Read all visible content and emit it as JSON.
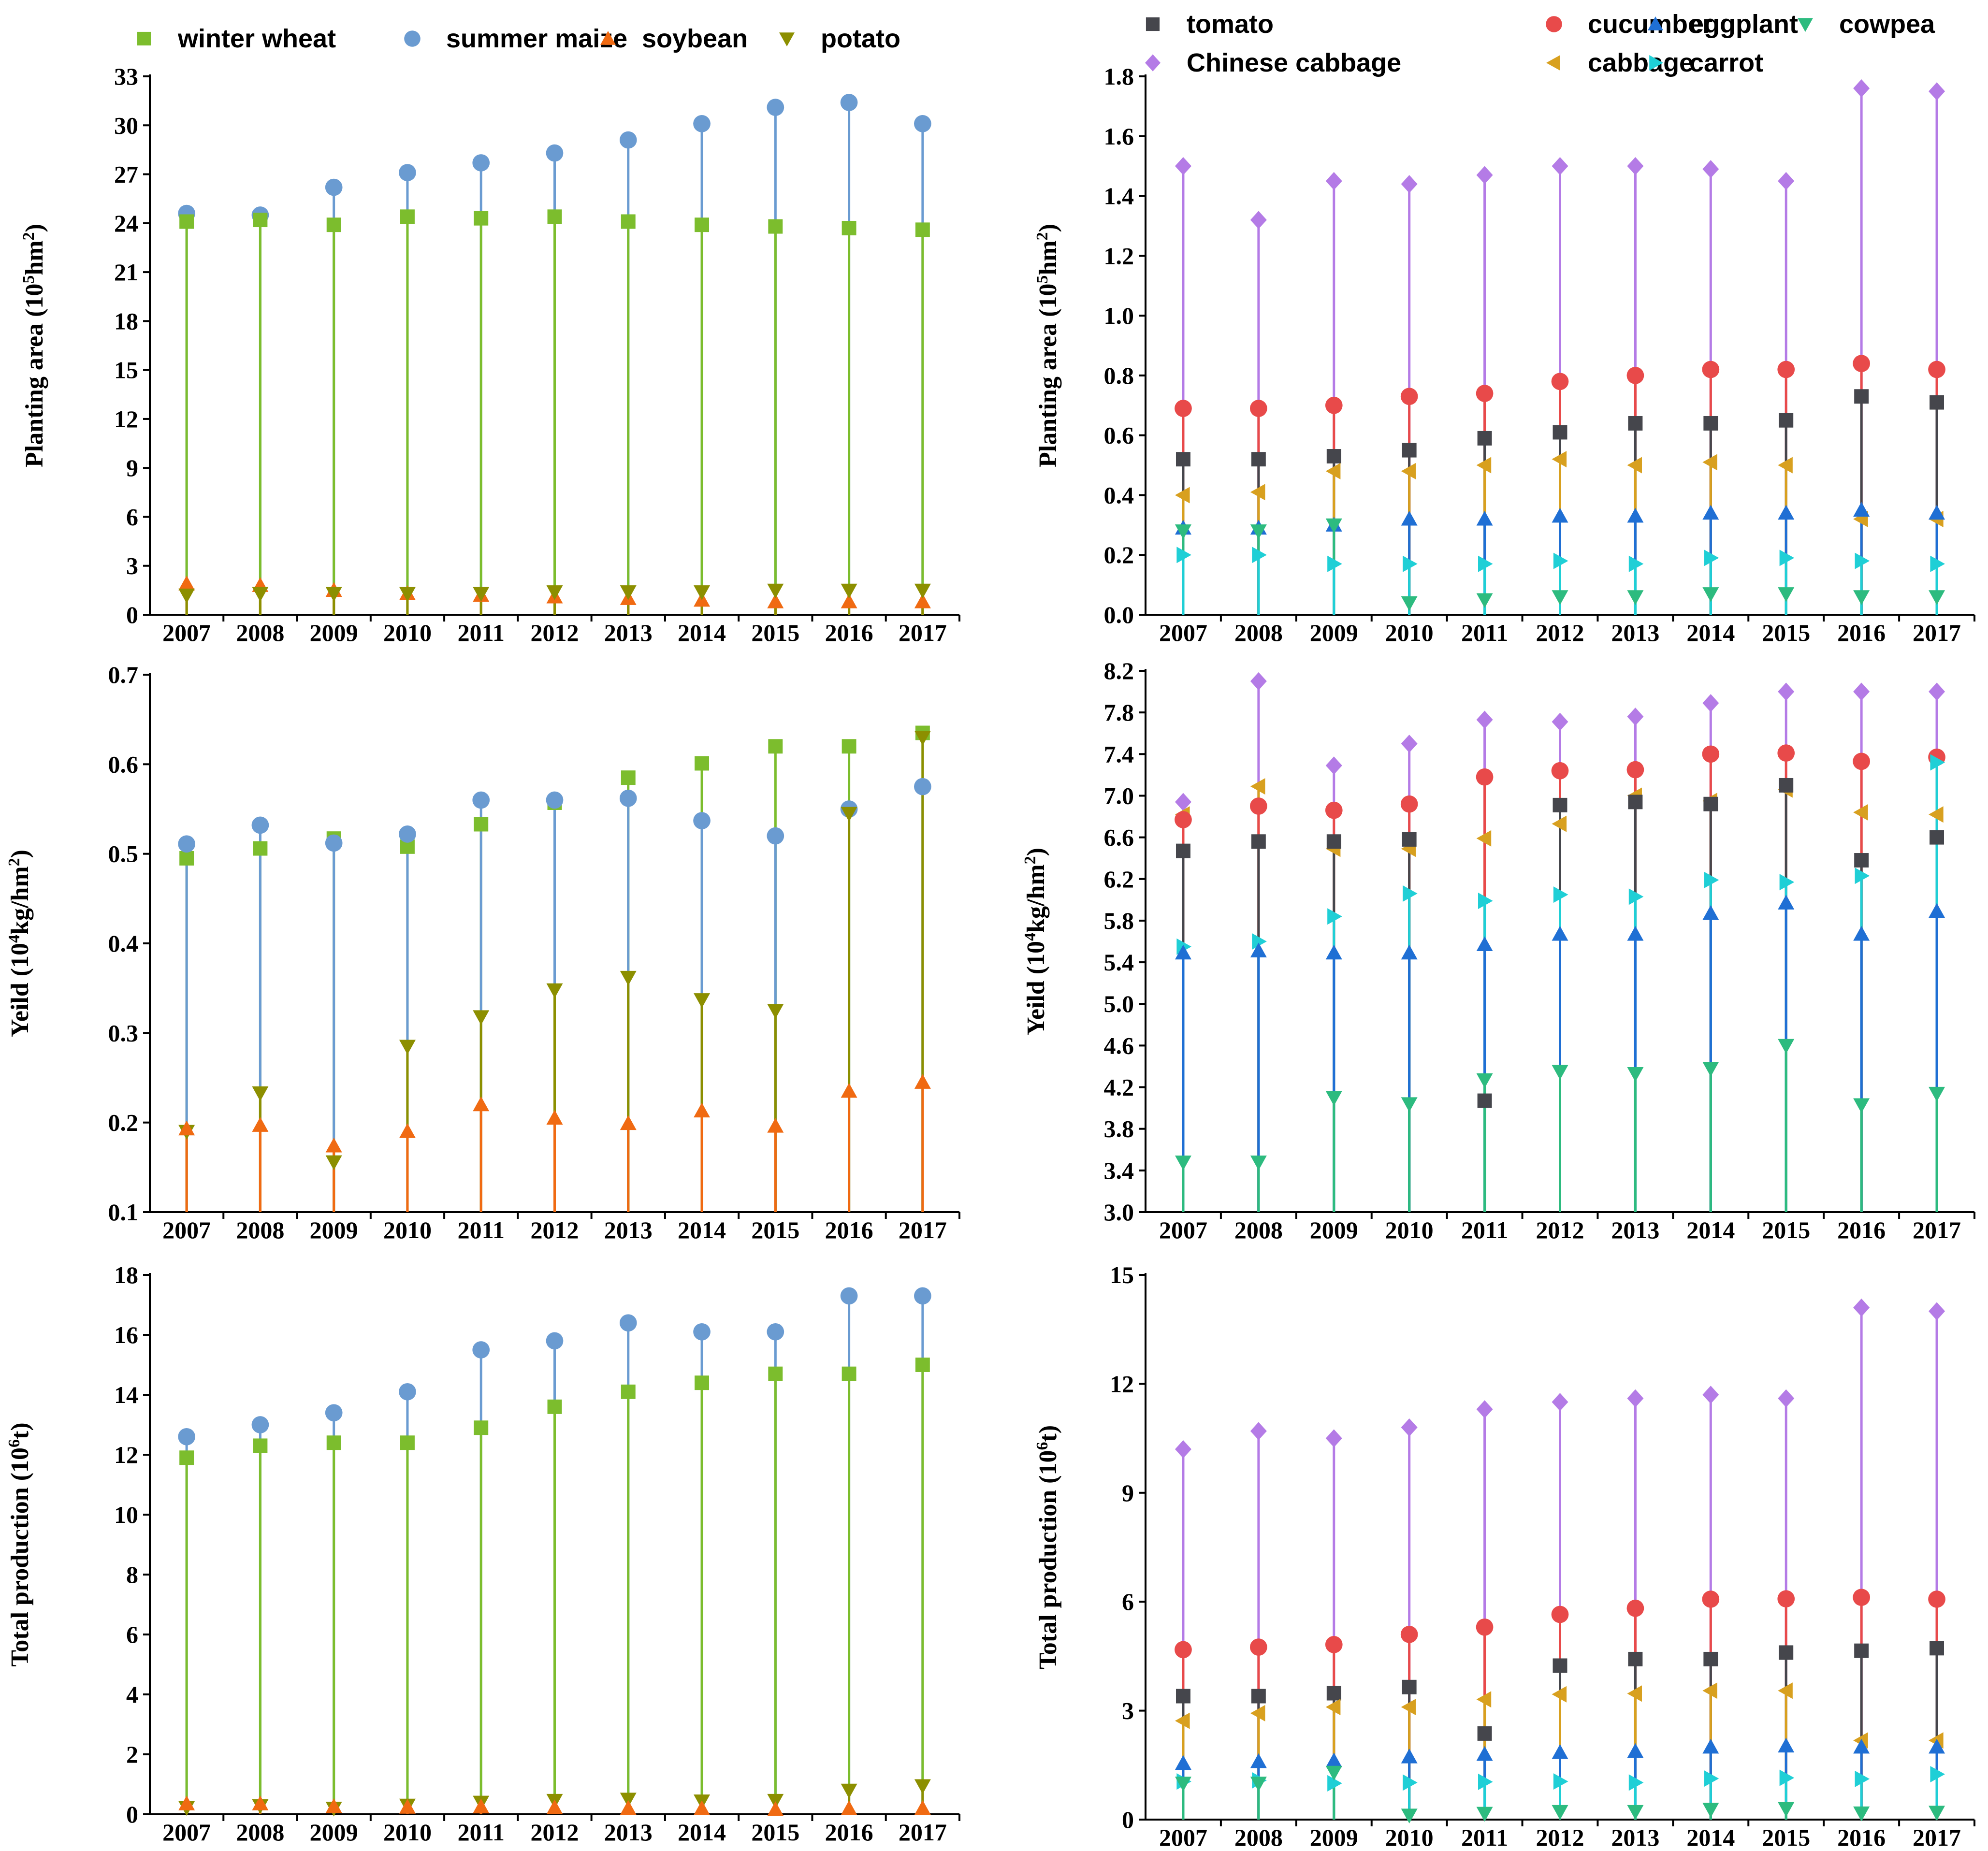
{
  "colors": {
    "winter_wheat": "#7cbd2d",
    "summer_maize": "#6a9bd1",
    "soybean": "#f06a12",
    "potato": "#8c8f00",
    "tomato": "#45464c",
    "cucumber": "#e84a4a",
    "eggplant": "#1f6fd4",
    "cowpea": "#2dbb7f",
    "chinese_cabbage": "#b47be6",
    "cabbage": "#d8a01f",
    "carrot": "#1fcfd6"
  },
  "chart_data": [
    {
      "id": "grain-area",
      "type": "scatter",
      "x": [
        "2007",
        "2008",
        "2009",
        "2010",
        "2011",
        "2012",
        "2013",
        "2014",
        "2015",
        "2016",
        "2017"
      ],
      "ylabel": "Planting area (10^5hm^2)",
      "ylim": [
        0,
        33
      ],
      "yticks": [
        "0",
        "3",
        "6",
        "9",
        "12",
        "15",
        "18",
        "21",
        "24",
        "27",
        "30",
        "33"
      ],
      "legend": [
        {
          "key": "winter_wheat",
          "label": "winter wheat",
          "marker": "square"
        },
        {
          "key": "summer_maize",
          "label": "summer maize",
          "marker": "circle"
        },
        {
          "key": "soybean",
          "label": "soybean",
          "marker": "triangle-up"
        },
        {
          "key": "potato",
          "label": "potato",
          "marker": "triangle-down"
        }
      ],
      "series": [
        {
          "key": "summer_maize",
          "name": "summer maize",
          "marker": "circle",
          "values": [
            24.6,
            24.5,
            26.2,
            27.1,
            27.7,
            28.3,
            29.1,
            30.1,
            31.1,
            31.4,
            30.1
          ]
        },
        {
          "key": "winter_wheat",
          "name": "winter wheat",
          "marker": "square",
          "values": [
            24.1,
            24.2,
            23.9,
            24.4,
            24.3,
            24.4,
            24.1,
            23.9,
            23.8,
            23.7,
            23.6
          ]
        },
        {
          "key": "soybean",
          "name": "soybean",
          "marker": "triangle-up",
          "values": [
            1.9,
            1.8,
            1.5,
            1.3,
            1.2,
            1.1,
            1.0,
            0.9,
            0.8,
            0.8,
            0.8
          ]
        },
        {
          "key": "potato",
          "name": "potato",
          "marker": "triangle-down",
          "values": [
            1.2,
            1.3,
            1.3,
            1.3,
            1.3,
            1.4,
            1.4,
            1.4,
            1.5,
            1.5,
            1.5
          ]
        }
      ]
    },
    {
      "id": "veg-area",
      "type": "scatter",
      "x": [
        "2007",
        "2008",
        "2009",
        "2010",
        "2011",
        "2012",
        "2013",
        "2014",
        "2015",
        "2016",
        "2017"
      ],
      "ylabel": "Planting area (10^5hm^2)",
      "ylim": [
        0,
        1.8
      ],
      "yticks": [
        "0.0",
        "0.2",
        "0.4",
        "0.6",
        "0.8",
        "1.0",
        "1.2",
        "1.4",
        "1.6",
        "1.8"
      ],
      "legend": [
        {
          "key": "tomato",
          "label": "tomato",
          "marker": "square"
        },
        {
          "key": "cucumber",
          "label": "cucumber",
          "marker": "circle"
        },
        {
          "key": "eggplant",
          "label": "eggplant",
          "marker": "triangle-up"
        },
        {
          "key": "cowpea",
          "label": "cowpea",
          "marker": "triangle-down"
        },
        {
          "key": "chinese_cabbage",
          "label": "Chinese cabbage",
          "marker": "diamond"
        },
        {
          "key": "cabbage",
          "label": "cabbage",
          "marker": "triangle-left"
        },
        {
          "key": "carrot",
          "label": "carrot",
          "marker": "triangle-right"
        }
      ],
      "series": [
        {
          "key": "chinese_cabbage",
          "name": "Chinese cabbage",
          "marker": "diamond",
          "values": [
            1.5,
            1.32,
            1.45,
            1.44,
            1.47,
            1.5,
            1.5,
            1.49,
            1.45,
            1.76,
            1.75
          ]
        },
        {
          "key": "cucumber",
          "name": "cucumber",
          "marker": "circle",
          "values": [
            0.69,
            0.69,
            0.7,
            0.73,
            0.74,
            0.78,
            0.8,
            0.82,
            0.82,
            0.84,
            0.82
          ]
        },
        {
          "key": "tomato",
          "name": "tomato",
          "marker": "square",
          "values": [
            0.52,
            0.52,
            0.53,
            0.55,
            0.59,
            0.61,
            0.64,
            0.64,
            0.65,
            0.73,
            0.71
          ]
        },
        {
          "key": "cabbage",
          "name": "cabbage",
          "marker": "triangle-left",
          "values": [
            0.4,
            0.41,
            0.48,
            0.48,
            0.5,
            0.52,
            0.5,
            0.51,
            0.5,
            0.32,
            0.32
          ]
        },
        {
          "key": "eggplant",
          "name": "eggplant",
          "marker": "triangle-up",
          "values": [
            0.29,
            0.29,
            0.3,
            0.32,
            0.32,
            0.33,
            0.33,
            0.34,
            0.34,
            0.35,
            0.34
          ]
        },
        {
          "key": "cowpea",
          "name": "cowpea",
          "marker": "triangle-down",
          "values": [
            0.28,
            0.28,
            0.3,
            0.04,
            0.05,
            0.06,
            0.06,
            0.07,
            0.07,
            0.06,
            0.06
          ]
        },
        {
          "key": "carrot",
          "name": "carrot",
          "marker": "triangle-right",
          "values": [
            0.2,
            0.2,
            0.17,
            0.17,
            0.17,
            0.18,
            0.17,
            0.19,
            0.19,
            0.18,
            0.17
          ]
        }
      ]
    },
    {
      "id": "grain-yield",
      "type": "scatter",
      "x": [
        "2007",
        "2008",
        "2009",
        "2010",
        "2011",
        "2012",
        "2013",
        "2014",
        "2015",
        "2016",
        "2017"
      ],
      "ylabel": "Yeild (10^4kg/hm^2)",
      "ylim": [
        0.1,
        0.7
      ],
      "yticks": [
        "0.1",
        "0.2",
        "0.3",
        "0.4",
        "0.5",
        "0.6",
        "0.7"
      ],
      "series": [
        {
          "key": "winter_wheat",
          "name": "winter wheat",
          "marker": "square",
          "values": [
            0.495,
            0.506,
            0.517,
            0.508,
            0.533,
            0.557,
            0.585,
            0.601,
            0.62,
            0.62,
            0.635
          ]
        },
        {
          "key": "summer_maize",
          "name": "summer maize",
          "marker": "circle",
          "values": [
            0.511,
            0.532,
            0.512,
            0.522,
            0.56,
            0.56,
            0.562,
            0.537,
            0.52,
            0.55,
            0.575
          ]
        },
        {
          "key": "potato",
          "name": "potato",
          "marker": "triangle-down",
          "values": [
            0.19,
            0.233,
            0.156,
            0.285,
            0.318,
            0.348,
            0.362,
            0.337,
            0.325,
            0.545,
            0.63
          ]
        },
        {
          "key": "soybean",
          "name": "soybean",
          "marker": "triangle-up",
          "values": [
            0.193,
            0.197,
            0.174,
            0.19,
            0.22,
            0.205,
            0.199,
            0.213,
            0.196,
            0.235,
            0.245
          ]
        }
      ]
    },
    {
      "id": "veg-yield",
      "type": "scatter",
      "x": [
        "2007",
        "2008",
        "2009",
        "2010",
        "2011",
        "2012",
        "2013",
        "2014",
        "2015",
        "2016",
        "2017"
      ],
      "ylabel": "Yeild (10^4kg/hm^2)",
      "ylim": [
        3.0,
        8.2
      ],
      "yticks": [
        "3.0",
        "3.4",
        "3.8",
        "4.2",
        "4.6",
        "5.0",
        "5.4",
        "5.8",
        "6.2",
        "6.6",
        "7.0",
        "7.4",
        "7.8",
        "8.2"
      ],
      "series": [
        {
          "key": "chinese_cabbage",
          "name": "Chinese cabbage",
          "marker": "diamond",
          "values": [
            6.94,
            8.1,
            7.29,
            7.5,
            7.73,
            7.71,
            7.76,
            7.89,
            8.0,
            8.0,
            8.0
          ]
        },
        {
          "key": "cabbage",
          "name": "cabbage",
          "marker": "triangle-left",
          "values": [
            6.82,
            7.09,
            6.49,
            6.49,
            6.59,
            6.73,
            7.0,
            6.95,
            7.06,
            6.84,
            6.82
          ]
        },
        {
          "key": "cucumber",
          "name": "cucumber",
          "marker": "circle",
          "values": [
            6.77,
            6.9,
            6.86,
            6.92,
            7.18,
            7.24,
            7.25,
            7.4,
            7.41,
            7.33,
            7.37
          ]
        },
        {
          "key": "tomato",
          "name": "tomato",
          "marker": "square",
          "values": [
            6.47,
            6.56,
            6.56,
            6.58,
            4.07,
            6.91,
            6.94,
            6.92,
            7.1,
            6.38,
            6.6
          ]
        },
        {
          "key": "carrot",
          "name": "carrot",
          "marker": "triangle-right",
          "values": [
            5.55,
            5.6,
            5.84,
            6.06,
            5.99,
            6.05,
            6.03,
            6.19,
            6.17,
            6.23,
            7.32
          ]
        },
        {
          "key": "eggplant",
          "name": "eggplant",
          "marker": "triangle-up",
          "values": [
            5.49,
            5.51,
            5.49,
            5.49,
            5.57,
            5.67,
            5.67,
            5.87,
            5.97,
            5.67,
            5.89
          ]
        },
        {
          "key": "cowpea",
          "name": "cowpea",
          "marker": "triangle-down",
          "values": [
            3.48,
            3.48,
            4.1,
            4.04,
            4.27,
            4.35,
            4.33,
            4.38,
            4.6,
            4.03,
            4.14
          ]
        }
      ]
    },
    {
      "id": "grain-production",
      "type": "scatter",
      "x": [
        "2007",
        "2008",
        "2009",
        "2010",
        "2011",
        "2012",
        "2013",
        "2014",
        "2015",
        "2016",
        "2017"
      ],
      "ylabel": "Total production (10^6t)",
      "ylim": [
        0,
        18
      ],
      "yticks": [
        "0",
        "2",
        "4",
        "6",
        "8",
        "10",
        "12",
        "14",
        "16",
        "18"
      ],
      "series": [
        {
          "key": "summer_maize",
          "name": "summer maize",
          "marker": "circle",
          "values": [
            12.6,
            13.0,
            13.4,
            14.1,
            15.5,
            15.8,
            16.4,
            16.1,
            16.1,
            17.3,
            17.3
          ]
        },
        {
          "key": "winter_wheat",
          "name": "winter wheat",
          "marker": "square",
          "values": [
            11.9,
            12.3,
            12.4,
            12.4,
            12.9,
            13.6,
            14.1,
            14.4,
            14.7,
            14.7,
            15.0
          ]
        },
        {
          "key": "potato",
          "name": "potato",
          "marker": "triangle-down",
          "values": [
            0.22,
            0.28,
            0.2,
            0.3,
            0.4,
            0.46,
            0.5,
            0.44,
            0.46,
            0.8,
            0.95
          ]
        },
        {
          "key": "soybean",
          "name": "soybean",
          "marker": "triangle-up",
          "values": [
            0.35,
            0.35,
            0.26,
            0.24,
            0.25,
            0.22,
            0.2,
            0.19,
            0.16,
            0.19,
            0.2
          ]
        }
      ]
    },
    {
      "id": "veg-production",
      "type": "scatter",
      "x": [
        "2007",
        "2008",
        "2009",
        "2010",
        "2011",
        "2012",
        "2013",
        "2014",
        "2015",
        "2016",
        "2017"
      ],
      "ylabel": "Total production (10^6t)",
      "ylim": [
        0,
        15
      ],
      "yticks": [
        "0",
        "3",
        "6",
        "9",
        "12",
        "15"
      ],
      "series": [
        {
          "key": "chinese_cabbage",
          "name": "Chinese cabbage",
          "marker": "diamond",
          "values": [
            10.2,
            10.7,
            10.5,
            10.8,
            11.3,
            11.5,
            11.6,
            11.7,
            11.6,
            14.1,
            14.0
          ]
        },
        {
          "key": "cucumber",
          "name": "cucumber",
          "marker": "circle",
          "values": [
            4.68,
            4.75,
            4.82,
            5.1,
            5.3,
            5.65,
            5.82,
            6.07,
            6.08,
            6.12,
            6.07
          ]
        },
        {
          "key": "tomato",
          "name": "tomato",
          "marker": "square",
          "values": [
            3.4,
            3.4,
            3.48,
            3.65,
            2.37,
            4.24,
            4.42,
            4.42,
            4.6,
            4.65,
            4.72
          ]
        },
        {
          "key": "cabbage",
          "name": "cabbage",
          "marker": "triangle-left",
          "values": [
            2.72,
            2.93,
            3.1,
            3.1,
            3.31,
            3.45,
            3.47,
            3.55,
            3.55,
            2.18,
            2.18
          ]
        },
        {
          "key": "eggplant",
          "name": "eggplant",
          "marker": "triangle-up",
          "values": [
            1.55,
            1.6,
            1.62,
            1.73,
            1.8,
            1.85,
            1.88,
            2.0,
            2.03,
            2.0,
            2.0
          ]
        },
        {
          "key": "carrot",
          "name": "carrot",
          "marker": "triangle-right",
          "values": [
            1.05,
            1.08,
            1.0,
            1.02,
            1.04,
            1.05,
            1.02,
            1.13,
            1.15,
            1.12,
            1.25
          ]
        },
        {
          "key": "cowpea",
          "name": "cowpea",
          "marker": "triangle-down",
          "values": [
            1.0,
            1.0,
            1.3,
            0.12,
            0.17,
            0.22,
            0.22,
            0.28,
            0.3,
            0.18,
            0.2
          ]
        }
      ]
    }
  ]
}
